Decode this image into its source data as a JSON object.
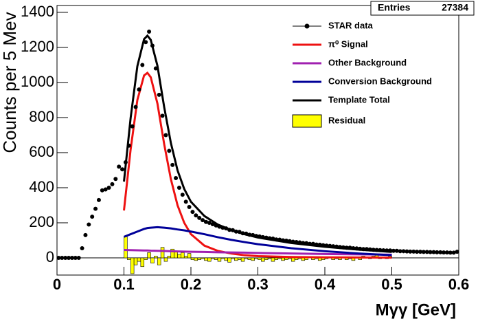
{
  "chart_data": {
    "type": "combo",
    "stats": {
      "label": "Entries",
      "value": 27384
    },
    "x_label": "Mγγ [GeV]",
    "y_label": "Counts per 5 Mev",
    "xlim": [
      0,
      0.6
    ],
    "xticks": [
      0,
      0.1,
      0.2,
      0.3,
      0.4,
      0.5,
      0.6
    ],
    "ylim": [
      -98,
      1439
    ],
    "yticks": [
      0,
      200,
      400,
      600,
      800,
      1000,
      1200,
      1400
    ],
    "legend": "top-right",
    "data": {
      "name": "STAR data",
      "type": "scatter",
      "color": "#000000",
      "x": [
        0.0025,
        0.0075,
        0.0125,
        0.0175,
        0.0225,
        0.0275,
        0.0325,
        0.0375,
        0.0425,
        0.0475,
        0.0525,
        0.0575,
        0.0625,
        0.0675,
        0.0725,
        0.0775,
        0.0825,
        0.0875,
        0.0925,
        0.0975,
        0.1025,
        0.1075,
        0.1125,
        0.1175,
        0.1225,
        0.1275,
        0.1325,
        0.1375,
        0.1425,
        0.1475,
        0.1525,
        0.1575,
        0.1625,
        0.1675,
        0.1725,
        0.1775,
        0.1825,
        0.1875,
        0.1925,
        0.1975,
        0.2025,
        0.2075,
        0.2125,
        0.2175,
        0.2225,
        0.2275,
        0.2325,
        0.2375,
        0.2425,
        0.2475,
        0.2525,
        0.2575,
        0.2625,
        0.2675,
        0.2725,
        0.2775,
        0.2825,
        0.2875,
        0.2925,
        0.2975,
        0.3025,
        0.3075,
        0.3125,
        0.3175,
        0.3225,
        0.3275,
        0.3325,
        0.3375,
        0.3425,
        0.3475,
        0.3525,
        0.3575,
        0.3625,
        0.3675,
        0.3725,
        0.3775,
        0.3825,
        0.3875,
        0.3925,
        0.3975,
        0.4025,
        0.4075,
        0.4125,
        0.4175,
        0.4225,
        0.4275,
        0.4325,
        0.4375,
        0.4425,
        0.4475,
        0.4525,
        0.4575,
        0.4625,
        0.4675,
        0.4725,
        0.4775,
        0.4825,
        0.4875,
        0.4925,
        0.4975,
        0.5025,
        0.5075,
        0.5125,
        0.5175,
        0.5225,
        0.5275,
        0.5325,
        0.5375,
        0.5425,
        0.5475,
        0.5525,
        0.5575,
        0.5625,
        0.5675,
        0.5725,
        0.5775,
        0.5825,
        0.5875,
        0.5925,
        0.5975
      ],
      "values": [
        0,
        0,
        0,
        0,
        0,
        0,
        0,
        55,
        130,
        190,
        235,
        280,
        330,
        385,
        390,
        400,
        420,
        450,
        520,
        505,
        545,
        640,
        750,
        860,
        960,
        1100,
        1230,
        1290,
        1210,
        1080,
        930,
        810,
        700,
        610,
        530,
        455,
        400,
        360,
        320,
        290,
        262,
        242,
        228,
        215,
        205,
        200,
        192,
        185,
        178,
        172,
        168,
        160,
        158,
        150,
        148,
        140,
        138,
        132,
        130,
        125,
        122,
        118,
        115,
        112,
        110,
        105,
        104,
        100,
        98,
        95,
        92,
        90,
        88,
        85,
        84,
        80,
        80,
        76,
        75,
        72,
        70,
        68,
        66,
        64,
        62,
        60,
        58,
        58,
        55,
        54,
        52,
        50,
        50,
        48,
        46,
        45,
        44,
        43,
        42,
        42,
        40,
        40,
        38,
        38,
        37,
        36,
        36,
        35,
        35,
        34,
        34,
        33,
        33,
        32,
        32,
        31,
        31,
        30,
        30,
        35
      ]
    },
    "curves": {
      "x": [
        0.1,
        0.11,
        0.12,
        0.13,
        0.135,
        0.14,
        0.15,
        0.16,
        0.17,
        0.18,
        0.19,
        0.2,
        0.22,
        0.24,
        0.26,
        0.28,
        0.3,
        0.35,
        0.4,
        0.45,
        0.5
      ],
      "series": [
        {
          "name": "π⁰ Signal",
          "color": "#ee1111",
          "values": [
            270,
            620,
            900,
            1040,
            1055,
            1030,
            880,
            650,
            450,
            300,
            200,
            135,
            70,
            40,
            25,
            15,
            10,
            5,
            3,
            2,
            1
          ]
        },
        {
          "name": "Other Background",
          "color": "#a020b0",
          "values": [
            45,
            44,
            43,
            42,
            42,
            41,
            40,
            39,
            38,
            37,
            36,
            35,
            34,
            32,
            31,
            30,
            28,
            25,
            22,
            20,
            18
          ]
        },
        {
          "name": "Conversion Background",
          "color": "#000099",
          "values": [
            120,
            135,
            150,
            165,
            170,
            172,
            175,
            172,
            168,
            162,
            157,
            150,
            135,
            118,
            103,
            90,
            78,
            55,
            38,
            25,
            15
          ]
        },
        {
          "name": "Template Total",
          "color": "#000000",
          "values": [
            435,
            799,
            1093,
            1247,
            1267,
            1243,
            1095,
            861,
            656,
            499,
            393,
            320,
            239,
            190,
            159,
            135,
            116,
            85,
            63,
            47,
            34
          ]
        }
      ]
    },
    "residual": {
      "name": "Residual",
      "type": "histogram",
      "color": "#ffff00",
      "bins": [
        0.1,
        0.105,
        0.11,
        0.115,
        0.12,
        0.125,
        0.13,
        0.135,
        0.14,
        0.145,
        0.15,
        0.155,
        0.16,
        0.165,
        0.17,
        0.175,
        0.18,
        0.185,
        0.19,
        0.195,
        0.2,
        0.205,
        0.21,
        0.215,
        0.22,
        0.225,
        0.23,
        0.235,
        0.24,
        0.245,
        0.25,
        0.255,
        0.26,
        0.265,
        0.27,
        0.275,
        0.28,
        0.285,
        0.29,
        0.295,
        0.3,
        0.305,
        0.31,
        0.315,
        0.32,
        0.325,
        0.33,
        0.335,
        0.34,
        0.345,
        0.35,
        0.355,
        0.36,
        0.365,
        0.37,
        0.375,
        0.38,
        0.385,
        0.39,
        0.395,
        0.4,
        0.405,
        0.41,
        0.415,
        0.42,
        0.425,
        0.43,
        0.435,
        0.44,
        0.445,
        0.45,
        0.455,
        0.46,
        0.465,
        0.47,
        0.475,
        0.48,
        0.485,
        0.49,
        0.495,
        0.5
      ],
      "values": [
        120,
        -10,
        -90,
        -40,
        -20,
        -50,
        -10,
        30,
        -30,
        10,
        -40,
        60,
        -20,
        10,
        50,
        40,
        20,
        30,
        10,
        25,
        -10,
        -15,
        -10,
        -5,
        -15,
        -20,
        -5,
        -10,
        -20,
        -5,
        -15,
        -25,
        -5,
        -15,
        -10,
        -20,
        -5,
        -10,
        -15,
        -5,
        -10,
        -20,
        -10,
        -5,
        -20,
        -10,
        -5,
        -15,
        -10,
        -5,
        -20,
        -10,
        -5,
        -15,
        -10,
        5,
        -10,
        -5,
        -15,
        -10,
        -5,
        5,
        -10,
        -5,
        -10,
        5,
        -10,
        -5,
        -15,
        5,
        -10,
        10,
        5,
        -5,
        10,
        15,
        -5,
        5,
        -5,
        10
      ]
    }
  }
}
